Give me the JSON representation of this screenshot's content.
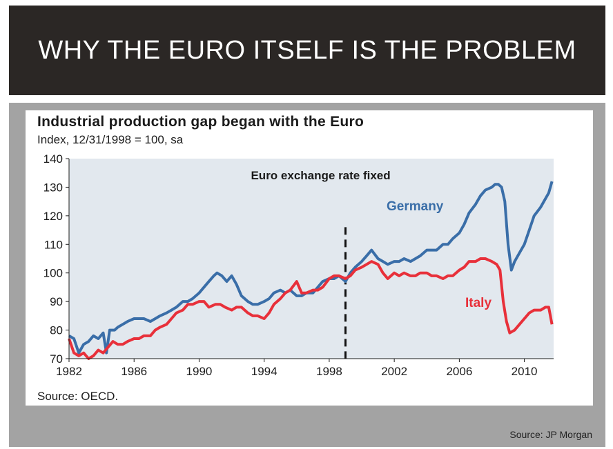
{
  "slide": {
    "title": "WHY THE EURO ITSELF IS THE PROBLEM",
    "source": "Source: JP Morgan"
  },
  "colors": {
    "title_bg": "#2b2725",
    "panel": "#a3a3a3",
    "plot_bg": "#e2e8ee",
    "germany": "#3a6ea8",
    "italy": "#e8303a"
  },
  "chart_data": {
    "type": "line",
    "title": "Industrial production gap began with the Euro",
    "subtitle": "Index, 12/31/1998 = 100, sa",
    "source": "Source: OECD.",
    "xlabel": "",
    "ylabel": "",
    "xlim": [
      1982,
      2011.8
    ],
    "ylim": [
      70,
      140
    ],
    "x_ticks": [
      1982,
      1986,
      1990,
      1994,
      1998,
      2002,
      2006,
      2010
    ],
    "y_ticks": [
      70,
      80,
      90,
      100,
      110,
      120,
      130,
      140
    ],
    "annotation": {
      "text": "Euro exchange rate fixed",
      "x": 1999
    },
    "series": [
      {
        "name": "Germany",
        "x": [
          1982.0,
          1982.3,
          1982.6,
          1982.9,
          1983.2,
          1983.5,
          1983.8,
          1984.1,
          1984.3,
          1984.5,
          1984.8,
          1985.0,
          1985.3,
          1985.6,
          1986.0,
          1986.3,
          1986.6,
          1987.0,
          1987.3,
          1987.6,
          1988.0,
          1988.3,
          1988.6,
          1989.0,
          1989.3,
          1989.6,
          1990.0,
          1990.3,
          1990.6,
          1990.9,
          1991.1,
          1991.4,
          1991.7,
          1992.0,
          1992.3,
          1992.6,
          1993.0,
          1993.3,
          1993.6,
          1994.0,
          1994.3,
          1994.6,
          1995.0,
          1995.3,
          1995.6,
          1996.0,
          1996.3,
          1996.6,
          1997.0,
          1997.3,
          1997.6,
          1998.0,
          1998.3,
          1998.6,
          1999.0,
          1999.3,
          1999.6,
          2000.0,
          2000.3,
          2000.6,
          2001.0,
          2001.3,
          2001.6,
          2002.0,
          2002.3,
          2002.6,
          2003.0,
          2003.3,
          2003.6,
          2004.0,
          2004.3,
          2004.6,
          2005.0,
          2005.3,
          2005.6,
          2006.0,
          2006.3,
          2006.6,
          2007.0,
          2007.3,
          2007.6,
          2008.0,
          2008.2,
          2008.4,
          2008.6,
          2008.8,
          2009.0,
          2009.2,
          2009.4,
          2009.7,
          2010.0,
          2010.3,
          2010.6,
          2011.0,
          2011.3,
          2011.5,
          2011.7
        ],
        "values": [
          78,
          77,
          72,
          75,
          76,
          78,
          77,
          79,
          72,
          80,
          80,
          81,
          82,
          83,
          84,
          84,
          84,
          83,
          84,
          85,
          86,
          87,
          88,
          90,
          90,
          91,
          93,
          95,
          97,
          99,
          100,
          99,
          97,
          99,
          96,
          92,
          90,
          89,
          89,
          90,
          91,
          93,
          94,
          93,
          94,
          92,
          92,
          93,
          93,
          95,
          97,
          98,
          98,
          99,
          97,
          100,
          102,
          104,
          106,
          108,
          105,
          104,
          103,
          104,
          104,
          105,
          104,
          105,
          106,
          108,
          108,
          108,
          110,
          110,
          112,
          114,
          117,
          121,
          124,
          127,
          129,
          130,
          131,
          131,
          130,
          125,
          110,
          101,
          104,
          107,
          110,
          115,
          120,
          123,
          126,
          128,
          132
        ]
      },
      {
        "name": "Italy",
        "x": [
          1982.0,
          1982.3,
          1982.6,
          1982.9,
          1983.2,
          1983.5,
          1983.8,
          1984.1,
          1984.4,
          1984.7,
          1985.0,
          1985.3,
          1985.6,
          1986.0,
          1986.3,
          1986.6,
          1987.0,
          1987.3,
          1987.6,
          1988.0,
          1988.3,
          1988.6,
          1989.0,
          1989.3,
          1989.6,
          1990.0,
          1990.3,
          1990.6,
          1991.0,
          1991.3,
          1991.6,
          1992.0,
          1992.3,
          1992.6,
          1993.0,
          1993.3,
          1993.6,
          1994.0,
          1994.3,
          1994.6,
          1995.0,
          1995.3,
          1995.6,
          1996.0,
          1996.3,
          1996.6,
          1997.0,
          1997.3,
          1997.6,
          1998.0,
          1998.3,
          1998.6,
          1999.0,
          1999.3,
          1999.6,
          2000.0,
          2000.3,
          2000.6,
          2001.0,
          2001.3,
          2001.6,
          2002.0,
          2002.3,
          2002.6,
          2003.0,
          2003.3,
          2003.6,
          2004.0,
          2004.3,
          2004.6,
          2005.0,
          2005.3,
          2005.6,
          2006.0,
          2006.3,
          2006.6,
          2007.0,
          2007.3,
          2007.6,
          2008.0,
          2008.3,
          2008.5,
          2008.7,
          2008.9,
          2009.1,
          2009.4,
          2009.7,
          2010.0,
          2010.3,
          2010.6,
          2011.0,
          2011.3,
          2011.5,
          2011.7
        ],
        "values": [
          77,
          72,
          71,
          72,
          70,
          71,
          73,
          72,
          74,
          76,
          75,
          75,
          76,
          77,
          77,
          78,
          78,
          80,
          81,
          82,
          84,
          86,
          87,
          89,
          89,
          90,
          90,
          88,
          89,
          89,
          88,
          87,
          88,
          88,
          86,
          85,
          85,
          84,
          86,
          89,
          91,
          93,
          94,
          97,
          93,
          93,
          94,
          94,
          95,
          98,
          99,
          99,
          98,
          99,
          101,
          102,
          103,
          104,
          103,
          100,
          98,
          100,
          99,
          100,
          99,
          99,
          100,
          100,
          99,
          99,
          98,
          99,
          99,
          101,
          102,
          104,
          104,
          105,
          105,
          104,
          103,
          101,
          90,
          83,
          79,
          80,
          82,
          84,
          86,
          87,
          87,
          88,
          88,
          82
        ]
      }
    ]
  }
}
